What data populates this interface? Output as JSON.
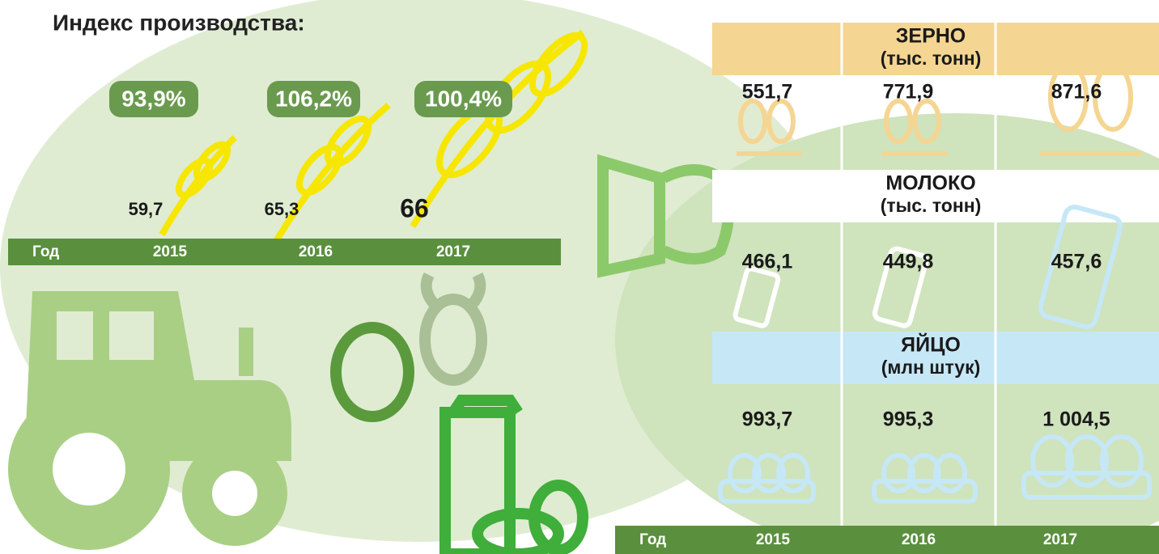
{
  "left": {
    "title": "Индекс производства:",
    "year_label": "Год",
    "years": [
      "2015",
      "2016",
      "2017"
    ],
    "indices": [
      "93,9%",
      "106,2%",
      "100,4%"
    ],
    "values": [
      "59,7",
      "65,3",
      "66"
    ]
  },
  "right": {
    "sections": [
      {
        "title": "ЗЕРНО",
        "unit": "(тыс. тонн)",
        "values": [
          "551,7",
          "771,9",
          "871,6"
        ]
      },
      {
        "title": "МОЛОКО",
        "unit": "(тыс. тонн)",
        "values": [
          "466,1",
          "449,8",
          "457,6"
        ]
      },
      {
        "title": "ЯЙЦО",
        "unit": "(млн штук)",
        "values": [
          "993,7",
          "995,3",
          "1 004,5"
        ]
      }
    ],
    "year_label": "Год",
    "years": [
      "2015",
      "2016",
      "2017"
    ]
  }
}
